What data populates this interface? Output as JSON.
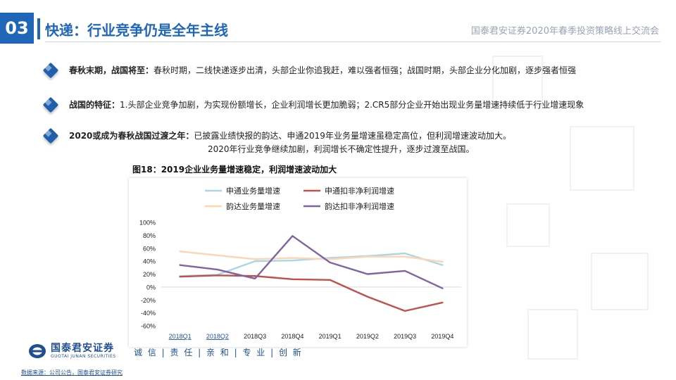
{
  "header": {
    "section_number": "03",
    "title": "快递：行业竞争仍是全年主线",
    "right_text": "国泰君安证券2020年春季投资策略线上交流会"
  },
  "bullets": [
    {
      "bold": "春秋末期，战国将至：",
      "text": "春秋时期，二线快递逐步出清，头部企业你追我赶，难以强者恒强；战国时期，头部企业分化加剧，逐步强者恒强"
    },
    {
      "bold": "战国的特征：",
      "text": "1.头部企业竞争加剧，为实现份额增长，企业利润增长更加脆弱；2.CR5部分企业开始出现业务量增速持续低于行业增速现象"
    },
    {
      "bold": "2020或成为春秋战国过渡之年：",
      "text": "已披露业绩快报的韵达、申通2019年业务量增速虽稳定高位，但利润增速波动加大。",
      "text2": "2020年行业竞争继续加剧，利润增长不确定性提升，逐步过渡至战国。"
    }
  ],
  "chart_title": "图18：2019企业业务量增速稳定，利润增速波动加大",
  "chart_data": {
    "type": "line",
    "categories": [
      "2018Q1",
      "2018Q2",
      "2018Q3",
      "2018Q4",
      "2019Q1",
      "2019Q2",
      "2019Q3",
      "2019Q4"
    ],
    "y_ticks": [
      "100%",
      "80%",
      "60%",
      "40%",
      "20%",
      "0%",
      "-20%",
      "-40%",
      "-60%"
    ],
    "ylim": [
      -60,
      100
    ],
    "legend_position": "top",
    "series": [
      {
        "name": "申通业务量增速",
        "color": "#a9d6e5",
        "values": [
          17,
          19,
          40,
          41,
          45,
          48,
          52,
          34
        ]
      },
      {
        "name": "申通扣非净利润增速",
        "color": "#c0504d",
        "values": [
          16,
          18,
          17,
          12,
          11,
          -15,
          -37,
          -24
        ]
      },
      {
        "name": "韵达业务量增速",
        "color": "#fcd5b4",
        "values": [
          55,
          49,
          43,
          45,
          43,
          47,
          47,
          39
        ]
      },
      {
        "name": "韵达扣非净利润增速",
        "color": "#8064a2",
        "values": [
          34,
          27,
          13,
          79,
          38,
          20,
          25,
          -2
        ]
      }
    ]
  },
  "footer": {
    "logo_cn": "国泰君安证券",
    "logo_en": "GUOTAI JUNAN SECURITIES",
    "slogan": "诚 信 | 责 任 | 亲 和 | 专 业 | 创 新",
    "source": "数据来源：公司公告，国泰君安证券研究"
  }
}
